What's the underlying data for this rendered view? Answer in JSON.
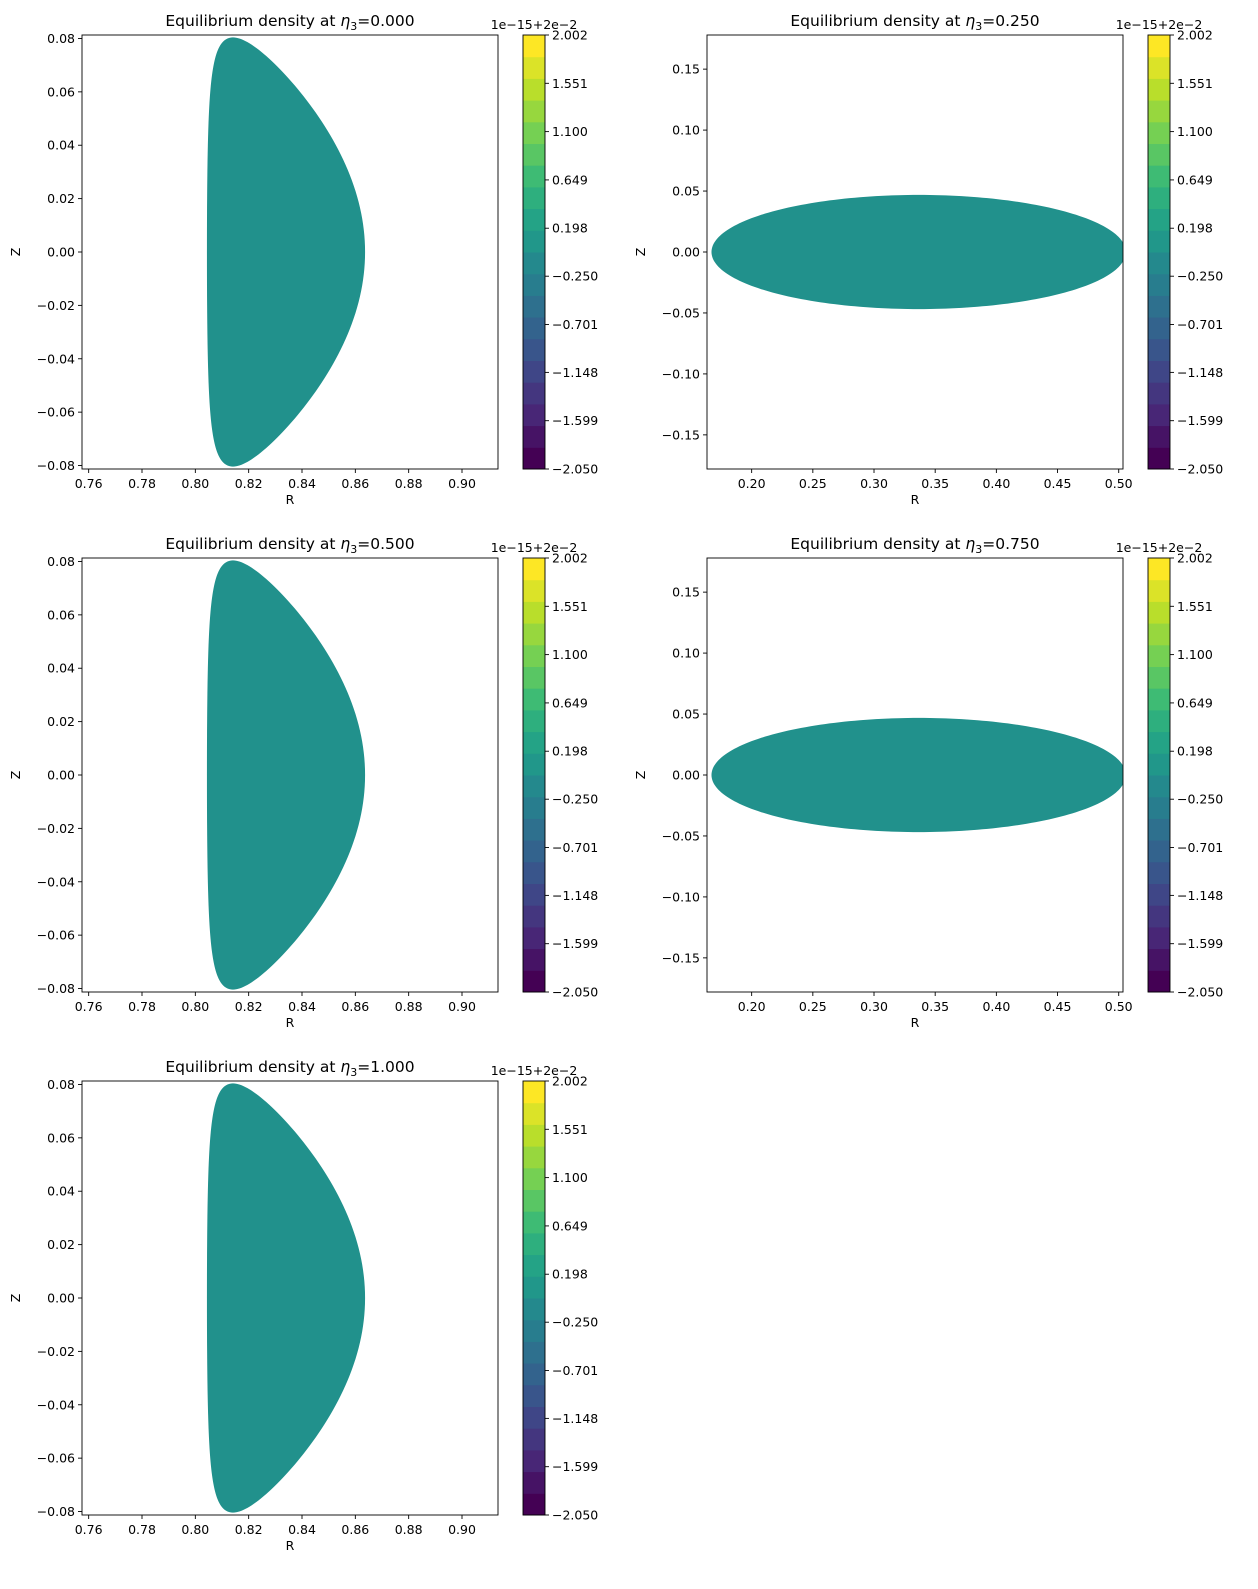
{
  "figure": {
    "background": "#ffffff"
  },
  "colormap": {
    "name": "viridis",
    "stops": [
      "#440154",
      "#482878",
      "#3e4a89",
      "#31688e",
      "#26828e",
      "#1f9e89",
      "#35b779",
      "#6ece58",
      "#b5de2b",
      "#fde725"
    ],
    "fill_color": "#21918c"
  },
  "chart_data": [
    {
      "type": "contourf",
      "title_prefix": "Equilibrium density at ",
      "title_symbol": "η",
      "title_subscript": "3",
      "title_value": "=0.000",
      "xlabel": "R",
      "ylabel": "Z",
      "xlim": [
        0.7575,
        0.9135
      ],
      "ylim": [
        -0.0813,
        0.0813
      ],
      "xticks": [
        "0.76",
        "0.78",
        "0.80",
        "0.82",
        "0.84",
        "0.86",
        "0.88",
        "0.90"
      ],
      "yticks": [
        "0.08",
        "0.06",
        "0.04",
        "0.02",
        "0.00",
        "−0.02",
        "−0.04",
        "−0.06",
        "−0.08"
      ],
      "xtick_values": [
        0.76,
        0.78,
        0.8,
        0.82,
        0.84,
        0.86,
        0.88,
        0.9
      ],
      "ytick_values": [
        0.08,
        0.06,
        0.04,
        0.02,
        0.0,
        -0.02,
        -0.04,
        -0.06,
        -0.08
      ],
      "shape": "d-shaped",
      "shape_params": {
        "r_center": 0.834,
        "a": 0.0295,
        "kappa": 2.72,
        "delta": 0.74,
        "z_max": 0.0808
      },
      "colorbar": {
        "offset_text": "1e−15+2e−2",
        "ticks": [
          "2.002",
          "1.551",
          "1.100",
          "0.649",
          "0.198",
          "−0.250",
          "−0.701",
          "−1.148",
          "−1.599",
          "−2.050"
        ],
        "tick_values": [
          2.002,
          1.551,
          1.1,
          0.649,
          0.198,
          -0.25,
          -0.701,
          -1.148,
          -1.599,
          -2.05
        ],
        "range": [
          -2.05,
          2.002
        ],
        "fill_value": 0.0
      }
    },
    {
      "type": "contourf",
      "title_prefix": "Equilibrium density at ",
      "title_symbol": "η",
      "title_subscript": "3",
      "title_value": "=0.250",
      "xlabel": "R",
      "ylabel": "Z",
      "xlim": [
        0.1635,
        0.5035
      ],
      "ylim": [
        -0.178,
        0.178
      ],
      "xticks": [
        "0.20",
        "0.25",
        "0.30",
        "0.35",
        "0.40",
        "0.45",
        "0.50"
      ],
      "yticks": [
        "0.15",
        "0.10",
        "0.05",
        "0.00",
        "−0.05",
        "−0.10",
        "−0.15"
      ],
      "xtick_values": [
        0.2,
        0.25,
        0.3,
        0.35,
        0.4,
        0.45,
        0.5
      ],
      "ytick_values": [
        0.15,
        0.1,
        0.05,
        0.0,
        -0.05,
        -0.1,
        -0.15
      ],
      "shape": "ellipse",
      "shape_params": {
        "r_center": 0.3365,
        "a": 0.169,
        "b": 0.0465
      },
      "colorbar": {
        "offset_text": "1e−15+2e−2",
        "ticks": [
          "2.002",
          "1.551",
          "1.100",
          "0.649",
          "0.198",
          "−0.250",
          "−0.701",
          "−1.148",
          "−1.599",
          "−2.050"
        ],
        "tick_values": [
          2.002,
          1.551,
          1.1,
          0.649,
          0.198,
          -0.25,
          -0.701,
          -1.148,
          -1.599,
          -2.05
        ],
        "range": [
          -2.05,
          2.002
        ],
        "fill_value": 0.0
      }
    },
    {
      "type": "contourf",
      "title_prefix": "Equilibrium density at ",
      "title_symbol": "η",
      "title_subscript": "3",
      "title_value": "=0.500",
      "xlabel": "R",
      "ylabel": "Z",
      "xlim": [
        0.7575,
        0.9135
      ],
      "ylim": [
        -0.0813,
        0.0813
      ],
      "xticks": [
        "0.76",
        "0.78",
        "0.80",
        "0.82",
        "0.84",
        "0.86",
        "0.88",
        "0.90"
      ],
      "yticks": [
        "0.08",
        "0.06",
        "0.04",
        "0.02",
        "0.00",
        "−0.02",
        "−0.04",
        "−0.06",
        "−0.08"
      ],
      "xtick_values": [
        0.76,
        0.78,
        0.8,
        0.82,
        0.84,
        0.86,
        0.88,
        0.9
      ],
      "ytick_values": [
        0.08,
        0.06,
        0.04,
        0.02,
        0.0,
        -0.02,
        -0.04,
        -0.06,
        -0.08
      ],
      "shape": "d-shaped",
      "shape_params": {
        "r_center": 0.834,
        "a": 0.0295,
        "kappa": 2.72,
        "delta": 0.74,
        "z_max": 0.0808
      },
      "colorbar": {
        "offset_text": "1e−15+2e−2",
        "ticks": [
          "2.002",
          "1.551",
          "1.100",
          "0.649",
          "0.198",
          "−0.250",
          "−0.701",
          "−1.148",
          "−1.599",
          "−2.050"
        ],
        "tick_values": [
          2.002,
          1.551,
          1.1,
          0.649,
          0.198,
          -0.25,
          -0.701,
          -1.148,
          -1.599,
          -2.05
        ],
        "range": [
          -2.05,
          2.002
        ],
        "fill_value": 0.0
      }
    },
    {
      "type": "contourf",
      "title_prefix": "Equilibrium density at ",
      "title_symbol": "η",
      "title_subscript": "3",
      "title_value": "=0.750",
      "xlabel": "R",
      "ylabel": "Z",
      "xlim": [
        0.1635,
        0.5035
      ],
      "ylim": [
        -0.178,
        0.178
      ],
      "xticks": [
        "0.20",
        "0.25",
        "0.30",
        "0.35",
        "0.40",
        "0.45",
        "0.50"
      ],
      "yticks": [
        "0.15",
        "0.10",
        "0.05",
        "0.00",
        "−0.05",
        "−0.10",
        "−0.15"
      ],
      "xtick_values": [
        0.2,
        0.25,
        0.3,
        0.35,
        0.4,
        0.45,
        0.5
      ],
      "ytick_values": [
        0.15,
        0.1,
        0.05,
        0.0,
        -0.05,
        -0.1,
        -0.15
      ],
      "shape": "ellipse",
      "shape_params": {
        "r_center": 0.3365,
        "a": 0.169,
        "b": 0.0465
      },
      "colorbar": {
        "offset_text": "1e−15+2e−2",
        "ticks": [
          "2.002",
          "1.551",
          "1.100",
          "0.649",
          "0.198",
          "−0.250",
          "−0.701",
          "−1.148",
          "−1.599",
          "−2.050"
        ],
        "tick_values": [
          2.002,
          1.551,
          1.1,
          0.649,
          0.198,
          -0.25,
          -0.701,
          -1.148,
          -1.599,
          -2.05
        ],
        "range": [
          -2.05,
          2.002
        ],
        "fill_value": 0.0
      }
    },
    {
      "type": "contourf",
      "title_prefix": "Equilibrium density at ",
      "title_symbol": "η",
      "title_subscript": "3",
      "title_value": "=1.000",
      "xlabel": "R",
      "ylabel": "Z",
      "xlim": [
        0.7575,
        0.9135
      ],
      "ylim": [
        -0.0813,
        0.0813
      ],
      "xticks": [
        "0.76",
        "0.78",
        "0.80",
        "0.82",
        "0.84",
        "0.86",
        "0.88",
        "0.90"
      ],
      "yticks": [
        "0.08",
        "0.06",
        "0.04",
        "0.02",
        "0.00",
        "−0.02",
        "−0.04",
        "−0.06",
        "−0.08"
      ],
      "xtick_values": [
        0.76,
        0.78,
        0.8,
        0.82,
        0.84,
        0.86,
        0.88,
        0.9
      ],
      "ytick_values": [
        0.08,
        0.06,
        0.04,
        0.02,
        0.0,
        -0.02,
        -0.04,
        -0.06,
        -0.08
      ],
      "shape": "d-shaped",
      "shape_params": {
        "r_center": 0.834,
        "a": 0.0295,
        "kappa": 2.72,
        "delta": 0.74,
        "z_max": 0.0808
      },
      "colorbar": {
        "offset_text": "1e−15+2e−2",
        "ticks": [
          "2.002",
          "1.551",
          "1.100",
          "0.649",
          "0.198",
          "−0.250",
          "−0.701",
          "−1.148",
          "−1.599",
          "−2.050"
        ],
        "tick_values": [
          2.002,
          1.551,
          1.1,
          0.649,
          0.198,
          -0.25,
          -0.701,
          -1.148,
          -1.599,
          -2.05
        ],
        "range": [
          -2.05,
          2.002
        ],
        "fill_value": 0.0
      }
    }
  ]
}
